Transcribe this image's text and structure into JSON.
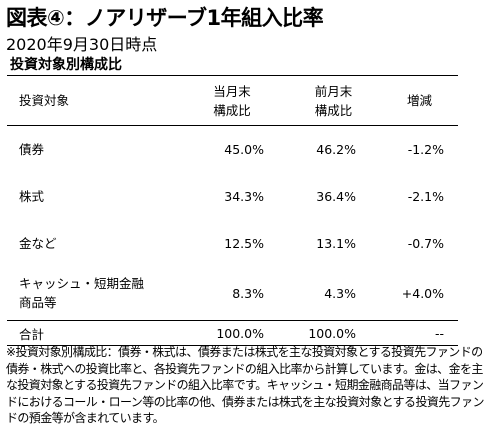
{
  "title": "図表④：ノアリザーブ1年組入比率",
  "date": "2020年9月30日時点",
  "subtitle": "投資対象別構成比",
  "table": {
    "headers": [
      "投資対象",
      "当月末\n構成比",
      "前月末\n構成比",
      "増減"
    ],
    "rows": [
      {
        "label": "債券",
        "current": "45.0%",
        "previous": "46.2%",
        "change": "-1.2%"
      },
      {
        "label": "株式",
        "current": "34.3%",
        "previous": "36.4%",
        "change": "-2.1%"
      },
      {
        "label": "金など",
        "current": "12.5%",
        "previous": "13.1%",
        "change": "-0.7%"
      },
      {
        "label": "キャッシュ・短期金融\n商品等",
        "current": "8.3%",
        "previous": "4.3%",
        "change": "+4.0%"
      }
    ],
    "total": {
      "label": "合計",
      "current": "100.0%",
      "previous": "100.0%",
      "change": "--"
    }
  },
  "note": "※投資対象別構成比：債券・株式は、債券または株式を主な投資対象とする投資先ファンドの債券・株式への投資比率と、各投資先ファンドの組入比率から計算しています。金は、金を主な投資対象とする投資先ファンドの組入比率です。キャッシュ・短期金融商品等は、当ファンドにおけるコール・ローン等の比率の他、債券または株式を主な投資対象とする投資先ファンドの預金等が含まれています。"
}
